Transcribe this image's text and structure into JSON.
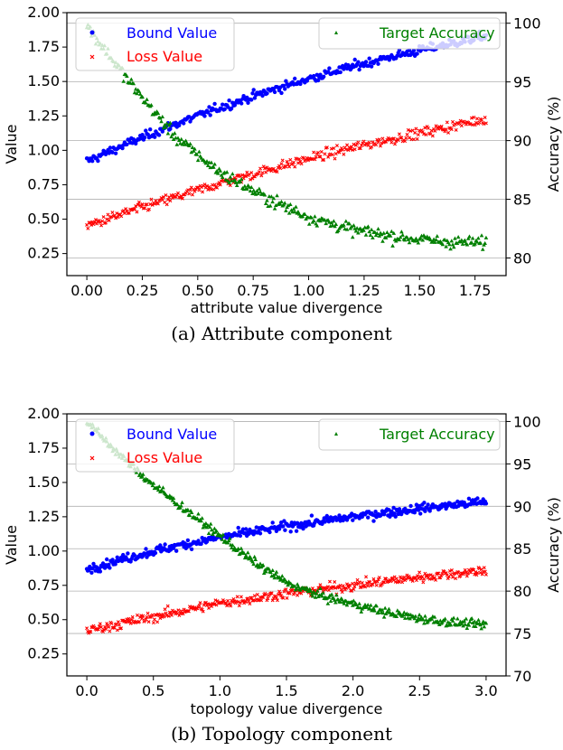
{
  "chart_data": [
    {
      "type": "scatter",
      "caption": "(a) Attribute component",
      "xlabel": "attribute value divergence",
      "ylabel": "Value",
      "y2label": "Accuracy (%)",
      "xlim": [
        -0.09,
        1.89
      ],
      "ylim": [
        0.09,
        2.0
      ],
      "y2lim": [
        78.5,
        100.9
      ],
      "xticks": [
        0.0,
        0.25,
        0.5,
        0.75,
        1.0,
        1.25,
        1.5,
        1.75
      ],
      "xtick_labels": [
        "0.00",
        "0.25",
        "0.50",
        "0.75",
        "1.00",
        "1.25",
        "1.50",
        "1.75"
      ],
      "yticks": [
        0.25,
        0.5,
        0.75,
        1.0,
        1.25,
        1.5,
        1.75,
        2.0
      ],
      "ytick_labels": [
        "0.25",
        "0.50",
        "0.75",
        "1.00",
        "1.25",
        "1.50",
        "1.75",
        "2.00"
      ],
      "y2ticks": [
        80,
        85,
        90,
        95,
        100
      ],
      "y2tick_labels": [
        "80",
        "85",
        "90",
        "95",
        "100"
      ],
      "x_range": [
        0.0,
        1.8
      ],
      "legend_left_placement": "upper-left",
      "legend_right_placement": "upper-right",
      "grid": "horizontal lines from right axis",
      "series": [
        {
          "name": "Bound Value",
          "axis": "left",
          "marker": "circle",
          "color": "#0000ff",
          "x": [
            0.0,
            0.2,
            0.4,
            0.6,
            0.8,
            1.0,
            1.2,
            1.4,
            1.6,
            1.8
          ],
          "y": [
            0.92,
            1.06,
            1.19,
            1.31,
            1.42,
            1.52,
            1.61,
            1.69,
            1.76,
            1.83
          ]
        },
        {
          "name": "Loss Value",
          "axis": "left",
          "marker": "x",
          "color": "#ff0000",
          "x": [
            0.0,
            0.2,
            0.4,
            0.6,
            0.8,
            1.0,
            1.2,
            1.4,
            1.6,
            1.8
          ],
          "y": [
            0.45,
            0.56,
            0.66,
            0.76,
            0.85,
            0.94,
            1.02,
            1.09,
            1.16,
            1.23
          ]
        },
        {
          "name": "Target Accuracy",
          "axis": "right",
          "marker": "triangle",
          "color": "#008000",
          "x": [
            0.0,
            0.2,
            0.4,
            0.6,
            0.8,
            1.0,
            1.2,
            1.4,
            1.6,
            1.8
          ],
          "y": [
            99.8,
            94.8,
            90.3,
            87.3,
            85.2,
            83.5,
            82.4,
            81.8,
            81.4,
            81.3
          ]
        }
      ]
    },
    {
      "type": "scatter",
      "caption": "(b) Topology component",
      "xlabel": "topology value divergence",
      "ylabel": "Value",
      "y2label": "Accuracy (%)",
      "xlim": [
        -0.15,
        3.15
      ],
      "ylim": [
        0.09,
        2.0
      ],
      "y2lim": [
        70.0,
        100.9
      ],
      "xticks": [
        0.0,
        0.5,
        1.0,
        1.5,
        2.0,
        2.5,
        3.0
      ],
      "xtick_labels": [
        "0.0",
        "0.5",
        "1.0",
        "1.5",
        "2.0",
        "2.5",
        "3.0"
      ],
      "yticks": [
        0.25,
        0.5,
        0.75,
        1.0,
        1.25,
        1.5,
        1.75,
        2.0
      ],
      "ytick_labels": [
        "0.25",
        "0.50",
        "0.75",
        "1.00",
        "1.25",
        "1.50",
        "1.75",
        "2.00"
      ],
      "y2ticks": [
        70,
        75,
        80,
        85,
        90,
        95,
        100
      ],
      "y2tick_labels": [
        "70",
        "75",
        "80",
        "85",
        "90",
        "95",
        "100"
      ],
      "x_range": [
        0.0,
        3.0
      ],
      "legend_left_placement": "upper-left",
      "legend_right_placement": "upper-right",
      "grid": "horizontal lines from right axis",
      "series": [
        {
          "name": "Bound Value",
          "axis": "left",
          "marker": "circle",
          "color": "#0000ff",
          "x": [
            0.0,
            0.5,
            1.0,
            1.5,
            2.0,
            2.5,
            3.0
          ],
          "y": [
            0.87,
            1.0,
            1.1,
            1.18,
            1.25,
            1.31,
            1.36
          ]
        },
        {
          "name": "Loss Value",
          "axis": "left",
          "marker": "x",
          "color": "#ff0000",
          "x": [
            0.0,
            0.5,
            1.0,
            1.5,
            2.0,
            2.5,
            3.0
          ],
          "y": [
            0.42,
            0.52,
            0.62,
            0.69,
            0.75,
            0.81,
            0.86
          ]
        },
        {
          "name": "Target Accuracy",
          "axis": "right",
          "marker": "triangle",
          "color": "#008000",
          "x": [
            0.0,
            0.25,
            0.5,
            0.75,
            1.0,
            1.25,
            1.5,
            1.75,
            2.0,
            2.25,
            2.5,
            2.75,
            3.0
          ],
          "y": [
            100.0,
            96.0,
            92.5,
            89.5,
            86.5,
            83.5,
            81.0,
            79.5,
            78.5,
            77.5,
            76.8,
            76.3,
            76.0
          ]
        }
      ]
    }
  ]
}
